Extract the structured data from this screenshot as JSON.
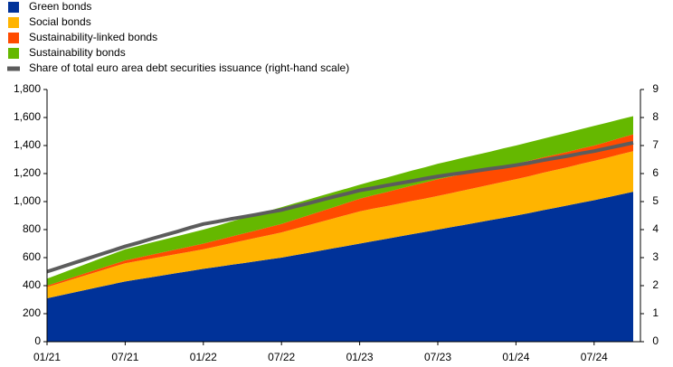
{
  "chart_data": {
    "type": "stacked-area-line",
    "categories": [
      "01/21",
      null,
      null,
      null,
      null,
      null,
      "07/21",
      null,
      null,
      null,
      null,
      null,
      "01/22",
      null,
      null,
      null,
      null,
      null,
      "07/22",
      null,
      null,
      null,
      null,
      null,
      "01/23",
      null,
      null,
      null,
      null,
      null,
      "07/23",
      null,
      null,
      null,
      null,
      null,
      "01/24",
      null,
      null,
      null,
      null,
      null,
      "07/24",
      null,
      null,
      null
    ],
    "series": [
      {
        "name": "Green bonds",
        "color": "#003299",
        "values": [
          310,
          330,
          350,
          370,
          390,
          410,
          430,
          445,
          460,
          475,
          490,
          505,
          520,
          533,
          547,
          560,
          573,
          587,
          600,
          617,
          633,
          650,
          667,
          683,
          700,
          717,
          733,
          750,
          767,
          783,
          800,
          817,
          833,
          850,
          867,
          883,
          900,
          918,
          937,
          955,
          973,
          992,
          1010,
          1030,
          1050,
          1070
        ]
      },
      {
        "name": "Social bonds",
        "color": "#ffb400",
        "values": [
          80,
          88,
          97,
          105,
          113,
          122,
          130,
          132,
          133,
          135,
          137,
          138,
          140,
          147,
          153,
          160,
          167,
          173,
          180,
          188,
          197,
          205,
          213,
          222,
          230,
          232,
          233,
          235,
          237,
          238,
          240,
          243,
          247,
          250,
          253,
          257,
          260,
          263,
          267,
          270,
          273,
          277,
          280,
          283,
          287,
          290
        ]
      },
      {
        "name": "Sustainability-linked bonds",
        "color": "#ff4b00",
        "values": [
          10,
          12,
          13,
          15,
          17,
          18,
          20,
          23,
          27,
          30,
          33,
          37,
          40,
          43,
          47,
          50,
          53,
          57,
          60,
          65,
          70,
          75,
          80,
          85,
          90,
          95,
          100,
          105,
          110,
          115,
          120,
          118,
          117,
          115,
          113,
          112,
          110,
          110,
          110,
          110,
          110,
          110,
          110,
          113,
          117,
          120
        ]
      },
      {
        "name": "Sustainability bonds",
        "color": "#65b800",
        "values": [
          50,
          55,
          60,
          65,
          70,
          75,
          80,
          83,
          87,
          90,
          93,
          97,
          100,
          103,
          107,
          110,
          113,
          117,
          120,
          117,
          113,
          110,
          107,
          103,
          100,
          102,
          103,
          105,
          107,
          108,
          110,
          113,
          117,
          120,
          123,
          127,
          130,
          132,
          133,
          135,
          137,
          138,
          140,
          137,
          133,
          130
        ]
      },
      {
        "name": "Share of total euro area debt securities issuance (right-hand scale)",
        "color": "#5c5c5c",
        "axis": "y2",
        "values": [
          2.5,
          2.65,
          2.8,
          2.95,
          3.1,
          3.25,
          3.4,
          3.53,
          3.67,
          3.8,
          3.93,
          4.07,
          4.2,
          4.28,
          4.37,
          4.45,
          4.53,
          4.62,
          4.7,
          4.82,
          4.93,
          5.05,
          5.17,
          5.28,
          5.4,
          5.48,
          5.57,
          5.65,
          5.73,
          5.82,
          5.9,
          5.97,
          6.03,
          6.1,
          6.17,
          6.23,
          6.3,
          6.38,
          6.47,
          6.55,
          6.63,
          6.72,
          6.8,
          6.9,
          7.0,
          7.1
        ]
      }
    ],
    "ylim": [
      0,
      1800
    ],
    "yticks": [
      0,
      200,
      400,
      600,
      800,
      {
        "value": 1000,
        "label": "1,000"
      },
      {
        "value": 1200,
        "label": "1,200"
      },
      {
        "value": 1400,
        "label": "1,400"
      },
      {
        "value": 1600,
        "label": "1,600"
      },
      {
        "value": 1800,
        "label": "1,800"
      }
    ],
    "y2lim": [
      0,
      9
    ],
    "y2ticks": [
      0,
      1,
      2,
      3,
      4,
      5,
      6,
      7,
      8,
      9
    ],
    "grid": false,
    "legend": "top-left"
  }
}
